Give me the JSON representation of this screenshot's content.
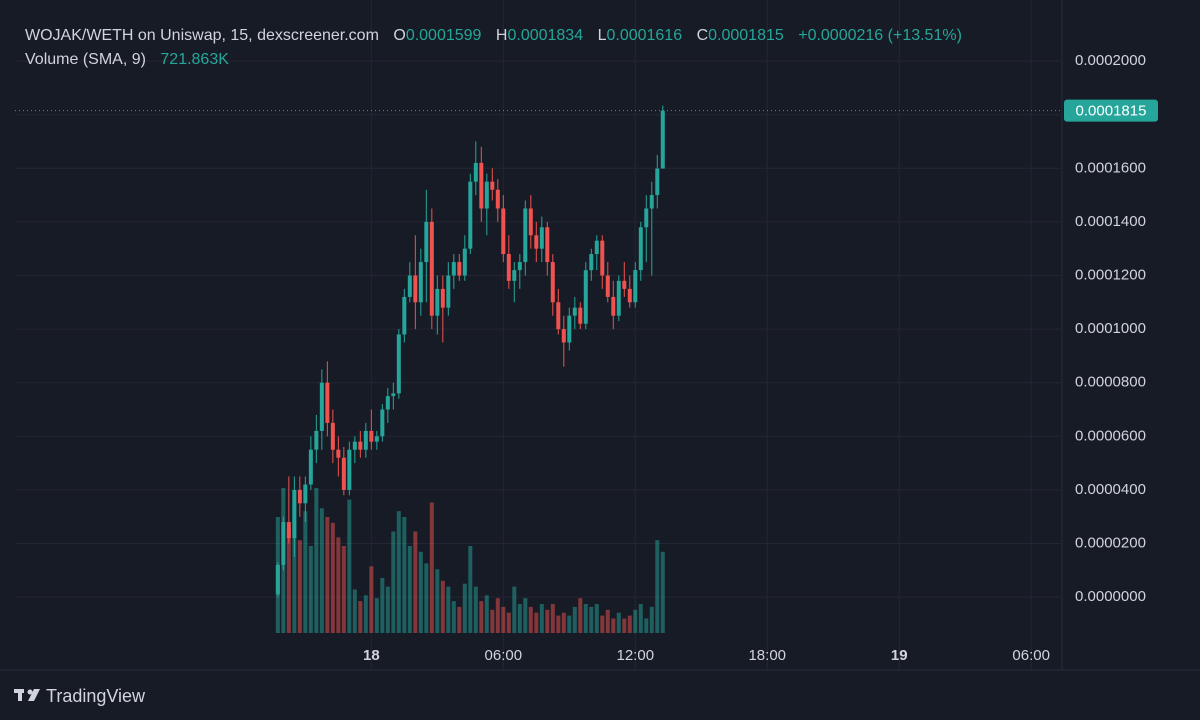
{
  "chart_data": {
    "type": "candlestick",
    "title": "WOJAK/WETH on Uniswap, 15, dexscreener.com",
    "ohlc_labels": [
      "O",
      "H",
      "L",
      "C"
    ],
    "change_label": "+0.0000216 (+13.51%)",
    "volume_label": "Volume (SMA, 9)",
    "volume_sma": "721.863K",
    "up_color": "#26a69a",
    "down_color": "#ef5350",
    "grid": true,
    "xlim": [
      -16.2,
      31.4
    ],
    "ylim": [
      -1.34e-05,
      0.0002172
    ],
    "xticks": [
      {
        "value": 0,
        "label": "18"
      },
      {
        "value": 6,
        "label": "06:00"
      },
      {
        "value": 12,
        "label": "12:00"
      },
      {
        "value": 18,
        "label": "18:00"
      },
      {
        "value": 24,
        "label": "19"
      },
      {
        "value": 30,
        "label": "06:00"
      }
    ],
    "yticks": [
      {
        "value": 0,
        "label": "0.0000000"
      },
      {
        "value": 2e-05,
        "label": "0.0000200"
      },
      {
        "value": 4e-05,
        "label": "0.0000400"
      },
      {
        "value": 6e-05,
        "label": "0.0000600"
      },
      {
        "value": 8e-05,
        "label": "0.0000800"
      },
      {
        "value": 0.0001,
        "label": "0.0001000"
      },
      {
        "value": 0.00012,
        "label": "0.0001200"
      },
      {
        "value": 0.00014,
        "label": "0.0001400"
      },
      {
        "value": 0.00016,
        "label": "0.0001600"
      },
      {
        "value": 0.00018,
        "label": "0.0001800"
      },
      {
        "value": 0.0002,
        "label": "0.0002000"
      }
    ],
    "x": [
      -4.25,
      -4,
      -3.75,
      -3.5,
      -3.25,
      -3,
      -2.75,
      -2.5,
      -2.25,
      -2,
      -1.75,
      -1.5,
      -1.25,
      -1,
      -0.75,
      -0.5,
      -0.25,
      0,
      0.25,
      0.5,
      0.75,
      1,
      1.25,
      1.5,
      1.75,
      2,
      2.25,
      2.5,
      2.75,
      3,
      3.25,
      3.5,
      3.75,
      4,
      4.25,
      4.5,
      4.75,
      5,
      5.25,
      5.5,
      5.75,
      6,
      6.25,
      6.5,
      6.75,
      7,
      7.25,
      7.5,
      7.75,
      8,
      8.25,
      8.5,
      8.75,
      9,
      9.25,
      9.5,
      9.75,
      10,
      10.25,
      10.5,
      10.75,
      11,
      11.25,
      11.5,
      11.75,
      12,
      12.25,
      12.5,
      12.75,
      13,
      13.25
    ],
    "open": [
      1e-06,
      1.2e-05,
      2.8e-05,
      2.2e-05,
      4e-05,
      3.5e-05,
      4.2e-05,
      5.5e-05,
      6.2e-05,
      8e-05,
      6.5e-05,
      5.5e-05,
      5.2e-05,
      4e-05,
      5.5e-05,
      5.8e-05,
      5.5e-05,
      6.2e-05,
      5.8e-05,
      6e-05,
      7e-05,
      7.5e-05,
      7.6e-05,
      9.8e-05,
      0.000112,
      0.00012,
      0.00011,
      0.000125,
      0.00014,
      0.000105,
      0.000115,
      0.000108,
      0.00012,
      0.000125,
      0.00012,
      0.00013,
      0.000155,
      0.000162,
      0.000145,
      0.000155,
      0.000152,
      0.000145,
      0.000128,
      0.000118,
      0.000122,
      0.000125,
      0.000145,
      0.000135,
      0.00013,
      0.000138,
      0.000125,
      0.00011,
      0.0001,
      9.5e-05,
      0.000105,
      0.000108,
      0.000102,
      0.000122,
      0.000128,
      0.000133,
      0.00012,
      0.000112,
      0.000105,
      0.000118,
      0.000115,
      0.00011,
      0.000122,
      0.000138,
      0.000145,
      0.00015,
      0.0001599
    ],
    "high": [
      1.3e-05,
      3e-05,
      4.5e-05,
      4.5e-05,
      4.5e-05,
      4.5e-05,
      6e-05,
      6.8e-05,
      8.5e-05,
      8.8e-05,
      7e-05,
      6e-05,
      5.6e-05,
      5.8e-05,
      6e-05,
      6.2e-05,
      6.5e-05,
      7e-05,
      6.2e-05,
      7.2e-05,
      7.8e-05,
      8e-05,
      0.0001,
      0.000115,
      0.000125,
      0.000135,
      0.00013,
      0.000152,
      0.000145,
      0.00012,
      0.00012,
      0.000125,
      0.000128,
      0.000128,
      0.000135,
      0.000158,
      0.00017,
      0.000168,
      0.000158,
      0.00016,
      0.000156,
      0.00015,
      0.000135,
      0.000125,
      0.000128,
      0.000148,
      0.00015,
      0.00014,
      0.000142,
      0.00014,
      0.000128,
      0.000115,
      0.000105,
      0.000108,
      0.000112,
      0.00011,
      0.000125,
      0.00013,
      0.000135,
      0.000135,
      0.000125,
      0.000118,
      0.00012,
      0.000125,
      0.00012,
      0.000125,
      0.00014,
      0.00015,
      0.000155,
      0.000165,
      0.0001834
    ],
    "low": [
      0,
      1e-05,
      2e-05,
      1.5e-05,
      3e-05,
      2.8e-05,
      4e-05,
      5e-05,
      5.5e-05,
      6e-05,
      5e-05,
      4.5e-05,
      3.8e-05,
      3.8e-05,
      5e-05,
      5.2e-05,
      5.2e-05,
      5.5e-05,
      5.5e-05,
      5.8e-05,
      6.5e-05,
      7e-05,
      7.4e-05,
      9.5e-05,
      0.00011,
      0.0001,
      0.000105,
      0.00011,
      0.0001,
      9.8e-05,
      9.5e-05,
      0.000105,
      0.000115,
      0.000118,
      0.000118,
      0.000128,
      0.00015,
      0.00014,
      0.000135,
      0.000148,
      0.00014,
      0.000125,
      0.000115,
      0.00011,
      0.000115,
      0.00012,
      0.00013,
      0.000125,
      0.000125,
      0.00012,
      0.000105,
      9.8e-05,
      8.6e-05,
      9.2e-05,
      0.0001,
      0.0001,
      0.0001,
      0.000118,
      0.000122,
      0.000115,
      0.00011,
      0.0001,
      0.000103,
      0.000112,
      0.000108,
      0.000108,
      0.000118,
      0.000125,
      0.00012,
      0.000145,
      0.0001616
    ],
    "close": [
      1.2e-05,
      2.8e-05,
      2.2e-05,
      4e-05,
      3.5e-05,
      4.2e-05,
      5.5e-05,
      6.2e-05,
      8e-05,
      6.5e-05,
      5.5e-05,
      5.2e-05,
      4e-05,
      5.5e-05,
      5.8e-05,
      5.5e-05,
      6.2e-05,
      5.8e-05,
      6e-05,
      7e-05,
      7.5e-05,
      7.6e-05,
      9.8e-05,
      0.000112,
      0.00012,
      0.00011,
      0.000125,
      0.00014,
      0.000105,
      0.000115,
      0.000108,
      0.00012,
      0.000125,
      0.00012,
      0.00013,
      0.000155,
      0.000162,
      0.000145,
      0.000155,
      0.000152,
      0.000145,
      0.000128,
      0.000118,
      0.000122,
      0.000125,
      0.000145,
      0.000135,
      0.00013,
      0.000138,
      0.000125,
      0.00011,
      0.0001,
      9.5e-05,
      0.000105,
      0.000108,
      0.000102,
      0.000122,
      0.000128,
      0.000133,
      0.00012,
      0.000112,
      0.000105,
      0.000118,
      0.000115,
      0.00011,
      0.000122,
      0.000138,
      0.000145,
      0.00015,
      0.0001599,
      0.0001815
    ],
    "volume": [
      2400000,
      3000000,
      2160000,
      2700000,
      1920000,
      2520000,
      1800000,
      3000000,
      2580000,
      2400000,
      2280000,
      1980000,
      1800000,
      2760000,
      900000,
      660000,
      780000,
      1380000,
      720000,
      1140000,
      960000,
      2100000,
      2520000,
      2400000,
      1800000,
      2100000,
      1680000,
      1440000,
      2700000,
      1320000,
      1080000,
      960000,
      660000,
      540000,
      1020000,
      1800000,
      960000,
      660000,
      780000,
      480000,
      720000,
      540000,
      420000,
      960000,
      600000,
      720000,
      540000,
      420000,
      600000,
      480000,
      600000,
      360000,
      420000,
      360000,
      540000,
      720000,
      600000,
      540000,
      600000,
      360000,
      480000,
      300000,
      420000,
      300000,
      360000,
      480000,
      600000,
      300000,
      540000,
      1920000,
      1680000
    ]
  },
  "branding": "TradingView"
}
